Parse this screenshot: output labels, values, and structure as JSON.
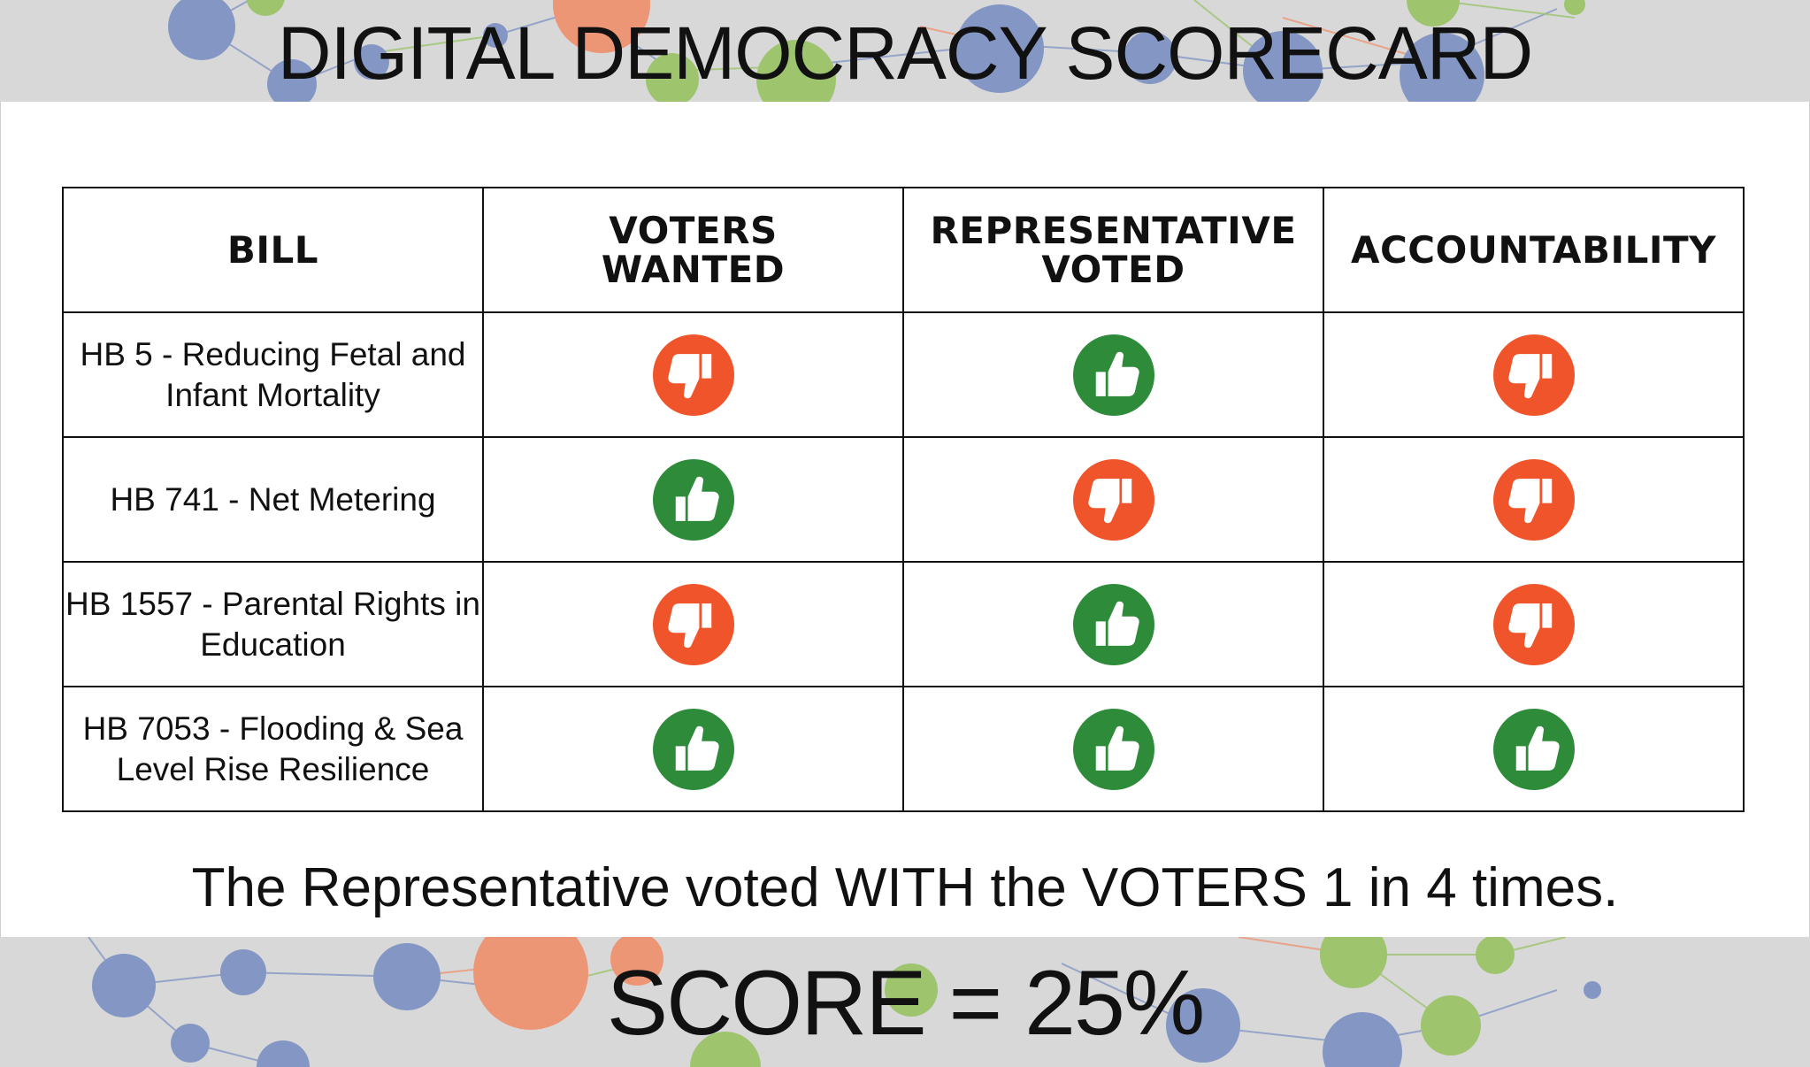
{
  "title": "DIGITAL DEMOCRACY SCORECARD",
  "table": {
    "headers": [
      "BILL",
      "VOTERS\nWANTED",
      "REPRESENTATIVE\nVOTED",
      "ACCOUNTABILITY"
    ],
    "rows": [
      {
        "bill": "HB 5 - Reducing Fetal and Infant Mortality",
        "voters_wanted": "thumbs-down",
        "representative_voted": "thumbs-up",
        "accountability": "thumbs-down"
      },
      {
        "bill": "HB 741 - Net Metering",
        "voters_wanted": "thumbs-up",
        "representative_voted": "thumbs-down",
        "accountability": "thumbs-down"
      },
      {
        "bill": "HB 1557 - Parental Rights in Education",
        "voters_wanted": "thumbs-down",
        "representative_voted": "thumbs-up",
        "accountability": "thumbs-down"
      },
      {
        "bill": "HB 7053 - Flooding & Sea Level Rise Resilience",
        "voters_wanted": "thumbs-up",
        "representative_voted": "thumbs-up",
        "accountability": "thumbs-up"
      }
    ]
  },
  "summary": "The Representative voted WITH the VOTERS 1 in 4 times.",
  "score": "SCORE = 25%",
  "colors": {
    "thumbs_up": "#2e8b3a",
    "thumbs_down": "#f0542a",
    "band_background": "#d8d8d8",
    "network_blue": "#8497c4",
    "network_green": "#9ec46e",
    "network_salmon": "#ec9675"
  }
}
